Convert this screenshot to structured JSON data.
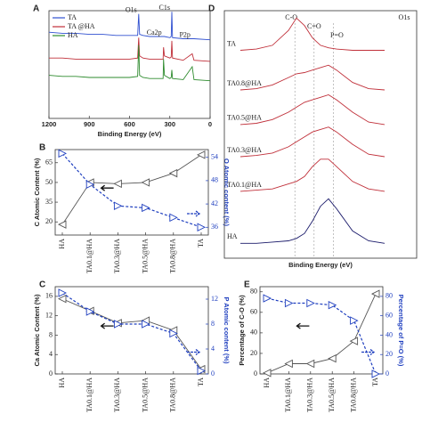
{
  "chart_data": [
    {
      "type": "line",
      "panel": "A",
      "xlabel": "Binding Energy (eV)",
      "xlim": [
        1200,
        0
      ],
      "xticks": [
        1200,
        900,
        600,
        300,
        0
      ],
      "ylim": [
        0,
        100
      ],
      "legend": "top-left",
      "x": [
        1200,
        1100,
        1000,
        900,
        800,
        700,
        600,
        540,
        532,
        525,
        500,
        450,
        400,
        350,
        347,
        340,
        300,
        290,
        285,
        280,
        200,
        133,
        120,
        0
      ],
      "series": [
        {
          "name": "TA",
          "color": "#3050d0",
          "values": [
            80,
            79,
            79,
            78,
            78,
            77,
            77,
            77,
            97,
            78,
            77,
            76,
            76,
            76,
            76,
            76,
            75,
            76,
            99,
            75,
            74,
            74,
            74,
            73
          ]
        },
        {
          "name": "TA @HA",
          "color": "#c0303a",
          "values": [
            56,
            56,
            55,
            55,
            55,
            55,
            55,
            56,
            75,
            58,
            56,
            55,
            55,
            55,
            66,
            58,
            56,
            57,
            72,
            56,
            54,
            60,
            54,
            53
          ]
        },
        {
          "name": "HA",
          "color": "#2e8b2e",
          "values": [
            40,
            39,
            39,
            38,
            38,
            38,
            38,
            39,
            68,
            40,
            38,
            37,
            37,
            37,
            55,
            40,
            37,
            38,
            45,
            37,
            36,
            48,
            36,
            35
          ]
        }
      ],
      "annotations": [
        {
          "text": "O1s",
          "x": 532
        },
        {
          "text": "C1s",
          "x": 285
        },
        {
          "text": "Ca2p",
          "x": 347
        },
        {
          "text": "P2p",
          "x": 133
        }
      ]
    },
    {
      "type": "line",
      "panel": "B",
      "ylabel": "C Atomic Content (%)",
      "y2label": "O Atomic content (%)",
      "categories": [
        "HA",
        "TA0.1@HA",
        "TA0.3@HA",
        "TA0.5@HA",
        "TA0.8@HA",
        "TA"
      ],
      "ylim": [
        10,
        75
      ],
      "yticks": [
        20,
        35,
        50,
        65
      ],
      "y2lim": [
        34,
        56
      ],
      "y2ticks": [
        36,
        42,
        48,
        54
      ],
      "series": [
        {
          "color": "#555555",
          "marker": "triangle-left",
          "values": [
            18,
            50,
            49,
            50,
            57,
            71
          ]
        },
        {
          "color": "#1f3fbf",
          "marker": "triangle-right",
          "dashed": true,
          "axis": "y2",
          "values": [
            55,
            47,
            41.5,
            41,
            38.5,
            36
          ]
        }
      ]
    },
    {
      "type": "line",
      "panel": "D",
      "title": "O1s",
      "xlabel": "Binding Energy (eV)",
      "xlim": [
        538,
        526
      ],
      "ylim": [
        0,
        100
      ],
      "x": [
        537,
        536,
        535,
        534,
        533.5,
        533,
        532.5,
        532,
        531.5,
        531,
        530,
        529,
        528
      ],
      "series": [
        {
          "name": "TA",
          "color": "#c0303a",
          "values": [
            84,
            84.5,
            86,
            92,
            97,
            94,
            89,
            86,
            85,
            84.5,
            84,
            84,
            84
          ]
        },
        {
          "name": "TA0.8@HA",
          "color": "#c0303a",
          "values": [
            68,
            68.5,
            70,
            73,
            74.5,
            75,
            76,
            77,
            78,
            76,
            71,
            68.5,
            68
          ]
        },
        {
          "name": "TA0.5@HA",
          "color": "#c0303a",
          "values": [
            54,
            54.5,
            56,
            59,
            61,
            63,
            64,
            65,
            66,
            64,
            59,
            55,
            54
          ]
        },
        {
          "name": "TA0.3@HA",
          "color": "#c0303a",
          "values": [
            41,
            41.5,
            42.5,
            45,
            47,
            49,
            51,
            52,
            53,
            51,
            46,
            42,
            41
          ]
        },
        {
          "name": "TA0.1@HA",
          "color": "#c0303a",
          "values": [
            27,
            27.5,
            28,
            30,
            31,
            33,
            37,
            40,
            40,
            37,
            31,
            28,
            27
          ]
        },
        {
          "name": "HA",
          "color": "#1a1a6a",
          "values": [
            6,
            6,
            6.5,
            7,
            8,
            10,
            15,
            21,
            24,
            20,
            11,
            7,
            6
          ]
        }
      ],
      "peaks": [
        {
          "text": "C-O",
          "x": 533.6
        },
        {
          "text": "C=O",
          "x": 532.4
        },
        {
          "text": "P=O",
          "x": 531.2
        }
      ]
    },
    {
      "type": "line",
      "panel": "C",
      "ylabel": "Ca Atomic Content (%)",
      "y2label": "P Atomic content (%)",
      "categories": [
        "HA",
        "TA0.1@HA",
        "TA0.3@HA",
        "TA0.5@HA",
        "TA0.8@HA",
        "TA"
      ],
      "ylim": [
        0,
        18
      ],
      "yticks": [
        0,
        4,
        8,
        12,
        16
      ],
      "y2lim": [
        0,
        14
      ],
      "y2ticks": [
        0,
        4,
        8,
        12
      ],
      "series": [
        {
          "color": "#555555",
          "marker": "triangle-left",
          "values": [
            15.5,
            13,
            10.5,
            11,
            9,
            1
          ]
        },
        {
          "color": "#1f3fbf",
          "marker": "triangle-right",
          "dashed": true,
          "axis": "y2",
          "values": [
            13,
            10,
            8,
            8,
            6.5,
            0.5
          ]
        }
      ]
    },
    {
      "type": "line",
      "panel": "E",
      "ylabel": "Percentage of C-O (%)",
      "y2label": "Percentage of P=O (%)",
      "categories": [
        "HA",
        "TA0.1@HA",
        "TA0.3@HA",
        "TA0.5@HA",
        "TA0.8@HA",
        "TA"
      ],
      "ylim": [
        0,
        85
      ],
      "yticks": [
        0,
        20,
        40,
        60,
        80
      ],
      "y2lim": [
        0,
        90
      ],
      "y2ticks": [
        0,
        20,
        40,
        60,
        80
      ],
      "series": [
        {
          "color": "#555555",
          "marker": "triangle-left",
          "values": [
            1,
            10,
            10,
            15,
            32,
            78
          ]
        },
        {
          "color": "#1f3fbf",
          "marker": "triangle-right",
          "dashed": true,
          "axis": "y2",
          "values": [
            78,
            73,
            73,
            71,
            55,
            0
          ]
        }
      ]
    }
  ]
}
